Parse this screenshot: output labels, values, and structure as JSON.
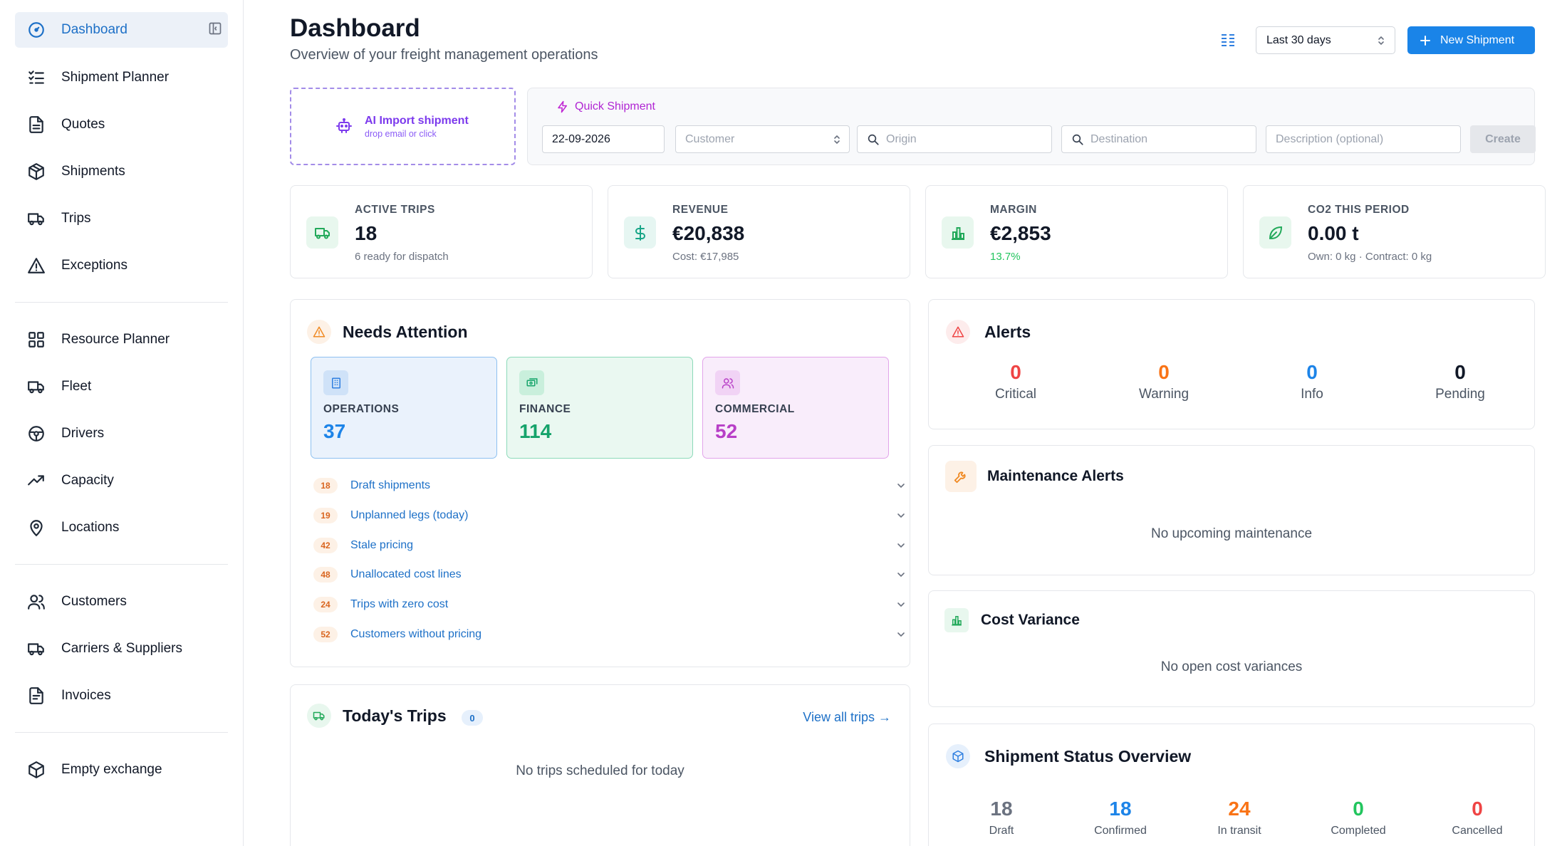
{
  "sidebar": {
    "items": [
      {
        "label": "Dashboard",
        "icon": "gauge-icon"
      },
      {
        "label": "Shipment Planner",
        "icon": "checklist-icon"
      },
      {
        "label": "Quotes",
        "icon": "document-icon"
      },
      {
        "label": "Shipments",
        "icon": "package-icon"
      },
      {
        "label": "Trips",
        "icon": "truck-icon"
      },
      {
        "label": "Exceptions",
        "icon": "warning-icon"
      },
      {
        "label": "Resource Planner",
        "icon": "grid-icon"
      },
      {
        "label": "Fleet",
        "icon": "truck-icon"
      },
      {
        "label": "Drivers",
        "icon": "steering-wheel-icon"
      },
      {
        "label": "Capacity",
        "icon": "trending-up-icon"
      },
      {
        "label": "Locations",
        "icon": "map-pin-icon"
      },
      {
        "label": "Customers",
        "icon": "users-icon"
      },
      {
        "label": "Carriers & Suppliers",
        "icon": "truck-icon"
      },
      {
        "label": "Invoices",
        "icon": "invoice-icon"
      },
      {
        "label": "Empty exchange",
        "icon": "package-icon"
      }
    ]
  },
  "header": {
    "title": "Dashboard",
    "subtitle": "Overview of your freight management operations",
    "period": "Last 30 days",
    "new_shipment": "New Shipment"
  },
  "ai_import": {
    "title": "AI Import shipment",
    "subtitle": "drop email or click"
  },
  "quick_shipment": {
    "label": "Quick Shipment",
    "date": "22-09-2026",
    "customer_placeholder": "Customer",
    "origin_placeholder": "Origin",
    "destination_placeholder": "Destination",
    "description_placeholder": "Description (optional)",
    "create": "Create"
  },
  "kpis": {
    "active_trips": {
      "label": "ACTIVE TRIPS",
      "value": "18",
      "sub": "6 ready for dispatch"
    },
    "revenue": {
      "label": "REVENUE",
      "value": "€20,838",
      "sub": "Cost: €17,985"
    },
    "margin": {
      "label": "MARGIN",
      "value": "€2,853",
      "sub": "13.7%"
    },
    "co2": {
      "label": "CO2 THIS PERIOD",
      "value": "0.00 t",
      "sub": "Own: 0 kg · Contract: 0 kg"
    }
  },
  "needs_attention": {
    "title": "Needs Attention",
    "departments": {
      "operations": {
        "label": "OPERATIONS",
        "value": "37"
      },
      "finance": {
        "label": "FINANCE",
        "value": "114"
      },
      "commercial": {
        "label": "COMMERCIAL",
        "value": "52"
      }
    },
    "items": [
      {
        "count": "18",
        "label": "Draft shipments"
      },
      {
        "count": "19",
        "label": "Unplanned legs (today)"
      },
      {
        "count": "42",
        "label": "Stale pricing"
      },
      {
        "count": "48",
        "label": "Unallocated cost lines"
      },
      {
        "count": "24",
        "label": "Trips with zero cost"
      },
      {
        "count": "52",
        "label": "Customers without pricing"
      }
    ]
  },
  "todays_trips": {
    "title": "Today's Trips",
    "count": "0",
    "view_all": "View all trips →",
    "empty": "No trips scheduled for today"
  },
  "alerts": {
    "title": "Alerts",
    "stats": [
      {
        "value": "0",
        "label": "Critical",
        "color": "#ef4444"
      },
      {
        "value": "0",
        "label": "Warning",
        "color": "#f97316"
      },
      {
        "value": "0",
        "label": "Info",
        "color": "#1d84e8"
      },
      {
        "value": "0",
        "label": "Pending",
        "color": "#111827"
      }
    ]
  },
  "maintenance": {
    "title": "Maintenance Alerts",
    "empty": "No upcoming maintenance"
  },
  "cost_variance": {
    "title": "Cost Variance",
    "empty": "No open cost variances"
  },
  "shipment_status": {
    "title": "Shipment Status Overview",
    "stats": [
      {
        "value": "18",
        "label": "Draft",
        "color": "#6b7280"
      },
      {
        "value": "18",
        "label": "Confirmed",
        "color": "#1d84e8"
      },
      {
        "value": "24",
        "label": "In transit",
        "color": "#f97316"
      },
      {
        "value": "0",
        "label": "Completed",
        "color": "#22c55e"
      },
      {
        "value": "0",
        "label": "Cancelled",
        "color": "#ef4444"
      }
    ]
  },
  "colors": {
    "accent": "#1a84e8",
    "ai_purple": "#7c3aed",
    "quick_magenta": "#c026d3"
  }
}
